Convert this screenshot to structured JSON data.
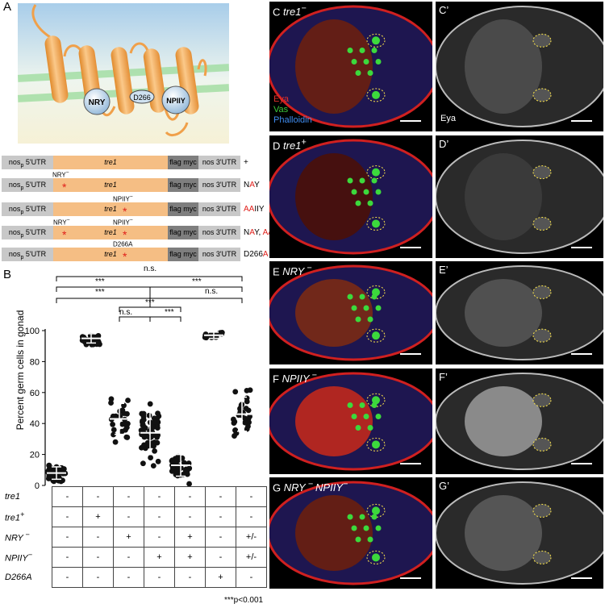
{
  "panel_labels": {
    "A": "A",
    "B": "B",
    "C": "C",
    "Cp": "C’",
    "D": "D",
    "Dp": "D’",
    "E": "E",
    "Ep": "E’",
    "F": "F",
    "Fp": "F’",
    "G": "G",
    "Gp": "G’"
  },
  "protein": {
    "motif_left": "NRY",
    "motif_mid": "D266",
    "motif_right": "NPIIY"
  },
  "constructs": [
    {
      "utr5": "nos",
      "utr5_sub": "p",
      "utr5_rest": " 5'UTR",
      "cds": "tre1",
      "tag": "flag myc",
      "utr3": "nos 3'UTR",
      "suffix": [
        {
          "t": "+",
          "red": false
        }
      ]
    },
    {
      "utr5": "nos",
      "utr5_sub": "p",
      "utr5_rest": " 5'UTR",
      "cds": "tre1",
      "tag": "flag myc",
      "utr3": "nos 3'UTR",
      "mut_label": "NRY",
      "mut_sup": "−",
      "suffix": [
        {
          "t": "N",
          "red": false
        },
        {
          "t": "A",
          "red": true
        },
        {
          "t": "Y",
          "red": false
        }
      ]
    },
    {
      "utr5": "nos",
      "utr5_sub": "p",
      "utr5_rest": " 5'UTR",
      "cds": "tre1",
      "tag": "flag myc",
      "utr3": "nos 3'UTR",
      "mut_label": "NPIIY",
      "mut_sup": "−",
      "suffix": [
        {
          "t": "AA",
          "red": true
        },
        {
          "t": "IIY",
          "red": false
        }
      ]
    },
    {
      "utr5": "nos",
      "utr5_sub": "p",
      "utr5_rest": " 5'UTR",
      "cds": "tre1",
      "tag": "flag myc",
      "utr3": "nos 3'UTR",
      "mut_label": "NRY",
      "mut_sup": "−",
      "mut_label2": "NPIIY",
      "mut_sup2": "−",
      "suffix": [
        {
          "t": "N",
          "red": false
        },
        {
          "t": "A",
          "red": true
        },
        {
          "t": "Y, ",
          "red": false
        },
        {
          "t": "AA",
          "red": true
        },
        {
          "t": "IIY",
          "red": false
        }
      ]
    },
    {
      "utr5": "nos",
      "utr5_sub": "p",
      "utr5_rest": " 5'UTR",
      "cds": "tre1",
      "tag": "flag myc",
      "utr3": "nos 3'UTR",
      "mut_label": "D266A",
      "mut_sup": "",
      "suffix": [
        {
          "t": "D266",
          "red": false
        },
        {
          "t": "A",
          "red": true
        }
      ]
    }
  ],
  "stats": {
    "ns_top": "n.s.",
    "sig1": "***",
    "sig2": "***",
    "sig3": "n.s.",
    "sig4": "***",
    "sig5": "***",
    "sig6": "n.s.",
    "sig7": "***",
    "footnote": "***p<0.001"
  },
  "chart_data": {
    "type": "scatter",
    "ylabel": "Percent germ cells in gonad",
    "ylim": [
      0,
      100
    ],
    "yticks": [
      0,
      20,
      40,
      60,
      80,
      100
    ],
    "groups": [
      {
        "mean": 8,
        "sd": 4,
        "n": 40
      },
      {
        "mean": 95,
        "sd": 3,
        "n": 30
      },
      {
        "mean": 43,
        "sd": 10,
        "n": 25
      },
      {
        "mean": 34,
        "sd": 14,
        "n": 60
      },
      {
        "mean": 13,
        "sd": 7,
        "n": 35
      },
      {
        "mean": 97,
        "sd": 2,
        "n": 20
      },
      {
        "mean": 46,
        "sd": 11,
        "n": 35
      }
    ]
  },
  "table": {
    "rows": [
      {
        "label": "tre1",
        "sup": "",
        "cells": [
          "-",
          "-",
          "-",
          "-",
          "-",
          "-",
          "-"
        ]
      },
      {
        "label": "tre1",
        "sup": "+",
        "cells": [
          "-",
          "+",
          "-",
          "-",
          "-",
          "-",
          "-"
        ]
      },
      {
        "label": "NRY",
        "sup": " −",
        "cells": [
          "-",
          "-",
          "+",
          "-",
          "+",
          "-",
          "+/-"
        ]
      },
      {
        "label": "NPIIY",
        "sup": "−",
        "cells": [
          "-",
          "-",
          "-",
          "+",
          "+",
          "-",
          "+/-"
        ]
      },
      {
        "label": "D266A",
        "sup": "",
        "cells": [
          "-",
          "-",
          "-",
          "-",
          "-",
          "+",
          "-"
        ]
      }
    ]
  },
  "images": {
    "C": {
      "title": "tre1",
      "sup": "−",
      "legend": [
        "Eya",
        "Vas",
        "Phalloidin"
      ],
      "legend_colors": [
        "#e0312b",
        "#3cc93c",
        "#3f8cf0"
      ]
    },
    "Cp": {
      "channel": "Eya"
    },
    "D": {
      "title": "tre1",
      "sup": "+"
    },
    "E": {
      "title": "NRY",
      "sup": " −"
    },
    "F": {
      "title": "NPIIY",
      "sup": " −"
    },
    "G": {
      "title": "NRY",
      "sup": " − ",
      "title2": "NPIIY",
      "sup2": "−"
    }
  }
}
